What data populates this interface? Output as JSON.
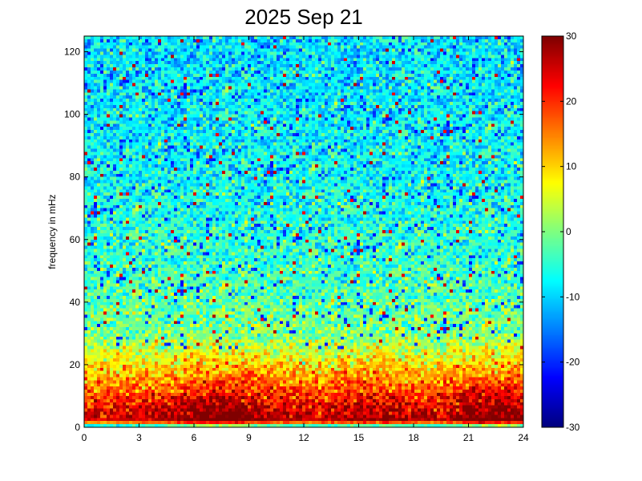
{
  "chart_data": {
    "type": "heatmap",
    "title": "2025 Sep 21",
    "xlabel": "",
    "ylabel": "frequency in mHz",
    "xlim": [
      0,
      24
    ],
    "ylim": [
      0,
      125
    ],
    "x_ticks": [
      "0",
      "3",
      "6",
      "9",
      "12",
      "15",
      "18",
      "21",
      "24"
    ],
    "y_ticks": [
      "0",
      "20",
      "40",
      "60",
      "80",
      "100",
      "120"
    ],
    "colorbar": {
      "range": [
        -30,
        30
      ],
      "ticks": [
        "-30",
        "-20",
        "-10",
        "0",
        "10",
        "20",
        "30"
      ],
      "colormap": "jet"
    },
    "profile_by_frequency": [
      {
        "freq_mHz": 0,
        "value": -18
      },
      {
        "freq_mHz": 2,
        "value": 24
      },
      {
        "freq_mHz": 6,
        "value": 22
      },
      {
        "freq_mHz": 12,
        "value": 16
      },
      {
        "freq_mHz": 20,
        "value": 8
      },
      {
        "freq_mHz": 30,
        "value": 0
      },
      {
        "freq_mHz": 50,
        "value": -4
      },
      {
        "freq_mHz": 80,
        "value": -7
      },
      {
        "freq_mHz": 125,
        "value": -9
      }
    ],
    "time_activity": [
      {
        "hour": 0,
        "boost": 0
      },
      {
        "hour": 2,
        "boost": 1
      },
      {
        "hour": 4,
        "boost": 2
      },
      {
        "hour": 6,
        "boost": 7
      },
      {
        "hour": 7.5,
        "boost": 9
      },
      {
        "hour": 9,
        "boost": 6
      },
      {
        "hour": 11,
        "boost": 3
      },
      {
        "hour": 13,
        "boost": 2
      },
      {
        "hour": 15,
        "boost": 5
      },
      {
        "hour": 17,
        "boost": 5
      },
      {
        "hour": 19,
        "boost": 1
      },
      {
        "hour": 21,
        "boost": 7
      },
      {
        "hour": 23,
        "boost": 8
      },
      {
        "hour": 24,
        "boost": 6
      }
    ]
  }
}
